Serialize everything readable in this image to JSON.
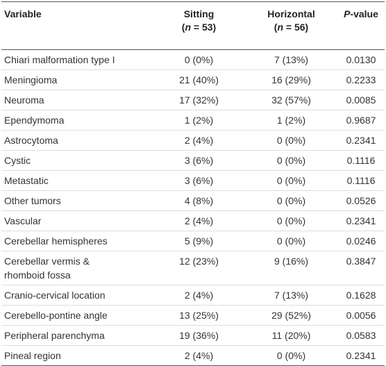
{
  "table": {
    "header": [
      {
        "parts": [
          "Variable"
        ]
      },
      {
        "parts": [
          "Sitting"
        ],
        "sub": [
          "(",
          "n",
          " = 53)"
        ]
      },
      {
        "parts": [
          "Horizontal"
        ],
        "sub": [
          "(",
          "n",
          " = 56)"
        ]
      },
      {
        "parts": [
          "P",
          "-value"
        ]
      }
    ],
    "rows": [
      [
        "Chiari malformation type I",
        "0 (0%)",
        "7 (13%)",
        "0.0130"
      ],
      [
        "Meningioma",
        "21 (40%)",
        "16 (29%)",
        "0.2233"
      ],
      [
        "Neuroma",
        "17 (32%)",
        "32 (57%)",
        "0.0085"
      ],
      [
        "Ependymoma",
        "1 (2%)",
        "1 (2%)",
        "0.9687"
      ],
      [
        "Astrocytoma",
        "2 (4%)",
        "0 (0%)",
        "0.2341"
      ],
      [
        "Cystic",
        "3 (6%)",
        "0 (0%)",
        "0.1116"
      ],
      [
        "Metastatic",
        "3 (6%)",
        "0 (0%)",
        "0.1116"
      ],
      [
        "Other tumors",
        "4 (8%)",
        "0 (0%)",
        "0.0526"
      ],
      [
        "Vascular",
        "2 (4%)",
        "0 (0%)",
        "0.2341"
      ],
      [
        "Cerebellar hemispheres",
        "5 (9%)",
        "0 (0%)",
        "0.0246"
      ],
      [
        "Cerebellar vermis & rhomboid fossa",
        "12 (23%)",
        "9 (16%)",
        "0.3847"
      ],
      [
        "Cranio-cervical location",
        "2 (4%)",
        "7 (13%)",
        "0.1628"
      ],
      [
        "Cerebello-pontine angle",
        "13 (25%)",
        "29 (52%)",
        "0.0056"
      ],
      [
        "Peripheral parenchyma",
        "19 (36%)",
        "11 (20%)",
        "0.0583"
      ],
      [
        "Pineal region",
        "2 (4%)",
        "0 (0%)",
        "0.2341"
      ]
    ]
  }
}
